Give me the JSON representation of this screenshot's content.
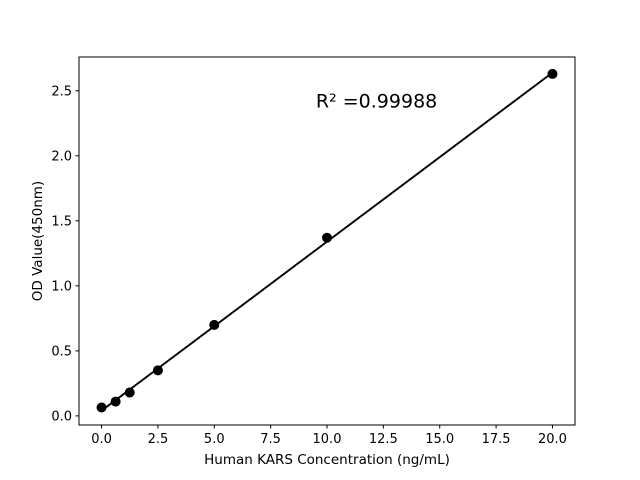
{
  "chart_data": {
    "type": "scatter",
    "title": "",
    "xlabel": "Human KARS Concentration (ng/mL)",
    "ylabel": "OD Value(450nm)",
    "annotation": {
      "text": "R² =0.99988",
      "x": 12.2,
      "y": 2.37
    },
    "x": [
      0,
      0.625,
      1.25,
      2.5,
      5,
      10,
      20
    ],
    "y": [
      0.065,
      0.11,
      0.18,
      0.35,
      0.7,
      1.37,
      2.63
    ],
    "fit": {
      "slope": 0.13,
      "intercept": 0.04,
      "x_start": 0,
      "x_end": 20
    },
    "x_ticks": [
      0,
      2.5,
      5,
      7.5,
      10,
      12.5,
      15,
      17.5,
      20
    ],
    "x_tick_labels": [
      "0.0",
      "2.5",
      "5.0",
      "7.5",
      "10.0",
      "12.5",
      "15.0",
      "17.5",
      "20.0"
    ],
    "y_ticks": [
      0,
      0.5,
      1,
      1.5,
      2,
      2.5
    ],
    "y_tick_labels": [
      "0.0",
      "0.5",
      "1.0",
      "1.5",
      "2.0",
      "2.5"
    ],
    "xlim": [
      -1.0,
      21.0
    ],
    "ylim": [
      -0.07,
      2.76
    ],
    "grid": false,
    "legend": null,
    "marker_color": "#000000",
    "line_color": "#000000",
    "axis_color": "#000000",
    "background_color": "#ffffff"
  }
}
